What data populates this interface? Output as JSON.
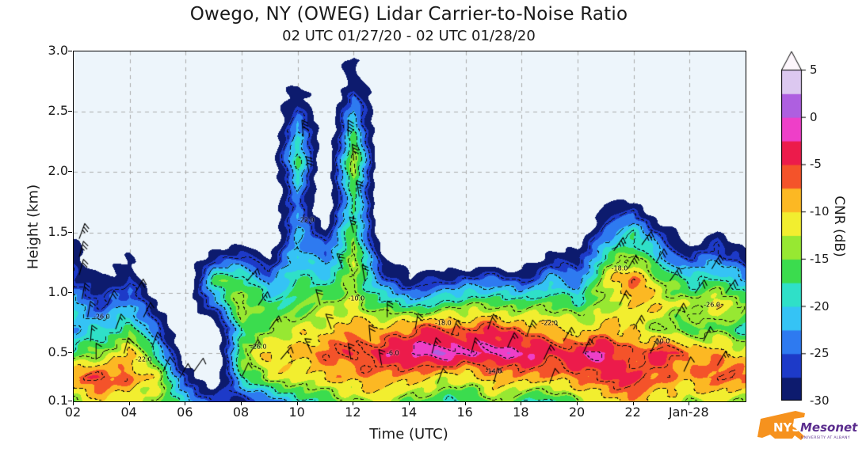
{
  "header": {
    "title": "Owego, NY (OWEG) Lidar Carrier-to-Noise Ratio",
    "subtitle": "02 UTC 01/27/20 - 02 UTC 01/28/20"
  },
  "axes": {
    "x": {
      "label": "Time (UTC)",
      "range_hours": [
        2,
        26
      ],
      "ticks": [
        {
          "hour": 2,
          "label": "02"
        },
        {
          "hour": 4,
          "label": "04"
        },
        {
          "hour": 6,
          "label": "06"
        },
        {
          "hour": 8,
          "label": "08"
        },
        {
          "hour": 10,
          "label": "10"
        },
        {
          "hour": 12,
          "label": "12"
        },
        {
          "hour": 14,
          "label": "14"
        },
        {
          "hour": 16,
          "label": "16"
        },
        {
          "hour": 18,
          "label": "18"
        },
        {
          "hour": 20,
          "label": "20"
        },
        {
          "hour": 22,
          "label": "22"
        },
        {
          "hour": 24,
          "label": "Jan-28"
        }
      ]
    },
    "y": {
      "label": "Height (km)",
      "range_km": [
        0.1,
        3.0
      ],
      "ticks": [
        {
          "km": 3.0,
          "label": "3.0"
        },
        {
          "km": 2.5,
          "label": "2.5"
        },
        {
          "km": 2.0,
          "label": "2.0"
        },
        {
          "km": 1.5,
          "label": "1.5"
        },
        {
          "km": 1.0,
          "label": "1.0"
        },
        {
          "km": 0.5,
          "label": "0.5"
        },
        {
          "km": 0.1,
          "label": "0.1"
        }
      ]
    }
  },
  "colorbar": {
    "label": "CNR (dB)",
    "range_db": [
      -30,
      5
    ],
    "band_step_db": 2.5,
    "ticks": [
      {
        "db": 5,
        "label": "5"
      },
      {
        "db": 0,
        "label": "0"
      },
      {
        "db": -5,
        "label": "-5"
      },
      {
        "db": -10,
        "label": "-10"
      },
      {
        "db": -15,
        "label": "-15"
      },
      {
        "db": -20,
        "label": "-20"
      },
      {
        "db": -25,
        "label": "-25"
      },
      {
        "db": -30,
        "label": "-30"
      }
    ],
    "colors_low_to_high": [
      "#0d1b6e",
      "#1d3ac8",
      "#2e7af0",
      "#35c3f5",
      "#2fe0c8",
      "#3bdc4e",
      "#97e832",
      "#f2ee2f",
      "#fcb823",
      "#f4532a",
      "#ec1b4b",
      "#ee3fc8",
      "#ae5fe0",
      "#dcc8f0"
    ],
    "over_color": "#fdf6fc",
    "plot_bg": "#edf5fb",
    "grid_color": "#aaaaaa"
  },
  "chart_data": {
    "type": "heatmap",
    "title": "Owego, NY (OWEG) Lidar Carrier-to-Noise Ratio",
    "subtitle": "02 UTC 01/27/20 - 02 UTC 01/28/20",
    "xlabel": "Time (UTC)",
    "ylabel": "Height (km)",
    "value_label": "CNR (dB)",
    "x_range_hours_from_02utc": [
      2,
      26
    ],
    "y_range_km": [
      0.1,
      3.0
    ],
    "value_range_db": [
      -30,
      5
    ],
    "contour_interval_db": 4,
    "x_hours": [
      2,
      3,
      4,
      5,
      6,
      7,
      8,
      9,
      10,
      11,
      12,
      13,
      14,
      15,
      16,
      17,
      18,
      19,
      20,
      21,
      22,
      23,
      24,
      25,
      26
    ],
    "heights_km": [
      0.1,
      0.3,
      0.5,
      0.7,
      0.9,
      1.1,
      1.3,
      1.5,
      1.7,
      1.9,
      2.1,
      2.3,
      2.5,
      2.7,
      2.9
    ],
    "cnr_db_columns": [
      [
        -14,
        -8,
        -16,
        -22,
        -20,
        -26,
        -29,
        -30,
        null,
        null,
        null,
        null,
        null,
        null,
        null
      ],
      [
        -10,
        -5,
        -14,
        -20,
        -26,
        -30,
        null,
        null,
        null,
        null,
        null,
        null,
        null,
        null,
        null
      ],
      [
        -12,
        -7,
        -10,
        -16,
        -22,
        -27,
        -30,
        null,
        null,
        null,
        null,
        null,
        null,
        null,
        null
      ],
      [
        -14,
        -12,
        -18,
        -26,
        -30,
        null,
        null,
        null,
        null,
        null,
        null,
        null,
        null,
        null,
        null
      ],
      [
        -20,
        -26,
        null,
        null,
        null,
        null,
        null,
        null,
        null,
        null,
        null,
        null,
        null,
        null,
        null
      ],
      [
        -26,
        null,
        null,
        null,
        -24,
        -16,
        -28,
        null,
        null,
        null,
        null,
        null,
        null,
        null,
        null
      ],
      [
        -28,
        -18,
        -14,
        -17,
        -12,
        -16,
        -27,
        null,
        null,
        null,
        null,
        null,
        null,
        null,
        null
      ],
      [
        -24,
        -12,
        -10,
        -15,
        -18,
        -23,
        -30,
        null,
        null,
        null,
        null,
        null,
        null,
        null,
        null
      ],
      [
        -20,
        -12,
        -9,
        -12,
        -15,
        -18,
        -20,
        -22,
        -24,
        -21,
        -16,
        -19,
        -26,
        -30,
        null
      ],
      [
        -17,
        -9,
        -7,
        -11,
        -14,
        -19,
        -24,
        -29,
        null,
        null,
        null,
        null,
        null,
        null,
        null
      ],
      [
        -14,
        -9,
        -5,
        -9,
        -12,
        -14,
        -12,
        -15,
        -17,
        -15,
        -12,
        -17,
        -22,
        -27,
        -30
      ],
      [
        -12,
        -7,
        -4,
        -9,
        -17,
        -24,
        -30,
        null,
        null,
        null,
        null,
        null,
        null,
        null,
        null
      ],
      [
        -15,
        -9,
        -2,
        -7,
        -19,
        -29,
        null,
        null,
        null,
        null,
        null,
        null,
        null,
        null,
        null
      ],
      [
        -17,
        -11,
        1,
        -5,
        -17,
        -27,
        null,
        null,
        null,
        null,
        null,
        null,
        null,
        null,
        null
      ],
      [
        -19,
        -11,
        -3,
        -7,
        -15,
        -25,
        null,
        null,
        null,
        null,
        null,
        null,
        null,
        null,
        null
      ],
      [
        -14,
        -9,
        -1,
        -5,
        -14,
        -24,
        null,
        null,
        null,
        null,
        null,
        null,
        null,
        null,
        null
      ],
      [
        -17,
        -7,
        -2,
        -7,
        -17,
        -27,
        null,
        null,
        null,
        null,
        null,
        null,
        null,
        null,
        null
      ],
      [
        -19,
        -9,
        -4,
        -9,
        -14,
        -21,
        -29,
        null,
        null,
        null,
        null,
        null,
        null,
        null,
        null
      ],
      [
        -14,
        -7,
        -3,
        -11,
        -17,
        -24,
        -30,
        null,
        null,
        null,
        null,
        null,
        null,
        null,
        null
      ],
      [
        -11,
        -5,
        -2,
        -9,
        -14,
        -11,
        -17,
        -24,
        -30,
        null,
        null,
        null,
        null,
        null,
        null
      ],
      [
        -9,
        -4,
        -7,
        -11,
        -9,
        -7,
        -14,
        -19,
        -28,
        null,
        null,
        null,
        null,
        null,
        null
      ],
      [
        -11,
        -7,
        -4,
        -14,
        -11,
        -14,
        -21,
        -27,
        null,
        null,
        null,
        null,
        null,
        null,
        null
      ],
      [
        -14,
        -9,
        -7,
        -17,
        -13,
        -19,
        -27,
        null,
        null,
        null,
        null,
        null,
        null,
        null,
        null
      ],
      [
        -11,
        -5,
        -9,
        -14,
        -11,
        -17,
        -24,
        -30,
        null,
        null,
        null,
        null,
        null,
        null,
        null
      ],
      [
        -14,
        -7,
        -11,
        -19,
        -14,
        -21,
        -29,
        null,
        null,
        null,
        null,
        null,
        null,
        null,
        null
      ]
    ],
    "wind_barbs_t_km_dir_speed": [
      [
        2.2,
        1.45,
        20,
        25
      ],
      [
        2.2,
        1.3,
        15,
        25
      ],
      [
        2.2,
        1.15,
        15,
        20
      ],
      [
        2.3,
        0.95,
        10,
        20
      ],
      [
        2.5,
        0.8,
        10,
        15
      ],
      [
        2.6,
        0.6,
        5,
        15
      ],
      [
        2.8,
        0.45,
        0,
        10
      ],
      [
        3.2,
        0.9,
        25,
        20
      ],
      [
        3.5,
        0.7,
        20,
        15
      ],
      [
        3.8,
        0.5,
        15,
        15
      ],
      [
        4.2,
        1.0,
        30,
        20
      ],
      [
        4.5,
        0.8,
        25,
        15
      ],
      [
        4.8,
        0.55,
        20,
        15
      ],
      [
        5.2,
        0.35,
        25,
        10
      ],
      [
        5.8,
        0.3,
        30,
        10
      ],
      [
        6.3,
        0.35,
        35,
        10
      ],
      [
        8.2,
        1.1,
        40,
        15
      ],
      [
        8.6,
        0.9,
        35,
        15
      ],
      [
        8.3,
        0.5,
        30,
        10
      ],
      [
        9.0,
        0.7,
        35,
        15
      ],
      [
        9.4,
        0.45,
        40,
        10
      ],
      [
        8.0,
        0.3,
        25,
        10
      ],
      [
        10.2,
        2.3,
        355,
        30
      ],
      [
        10.4,
        2.0,
        350,
        30
      ],
      [
        11.8,
        2.3,
        0,
        35
      ],
      [
        12.0,
        2.1,
        355,
        30
      ],
      [
        12.2,
        1.8,
        350,
        25
      ],
      [
        12.0,
        1.5,
        345,
        25
      ],
      [
        11.6,
        1.2,
        340,
        25
      ],
      [
        12.4,
        1.1,
        350,
        20
      ],
      [
        10.8,
        0.9,
        345,
        20
      ],
      [
        11.2,
        0.7,
        340,
        20
      ],
      [
        10.5,
        0.5,
        335,
        15
      ],
      [
        11.9,
        0.45,
        350,
        15
      ],
      [
        12.6,
        0.6,
        355,
        20
      ],
      [
        13.2,
        0.8,
        0,
        20
      ],
      [
        13.0,
        0.4,
        350,
        15
      ],
      [
        14.2,
        0.7,
        10,
        20
      ],
      [
        14.8,
        0.5,
        15,
        15
      ],
      [
        15.5,
        0.65,
        20,
        20
      ],
      [
        16.2,
        0.5,
        15,
        15
      ],
      [
        16.8,
        0.7,
        20,
        20
      ],
      [
        17.5,
        0.55,
        25,
        15
      ],
      [
        18.2,
        0.65,
        20,
        20
      ],
      [
        18.8,
        0.45,
        25,
        15
      ],
      [
        19.5,
        0.6,
        30,
        15
      ],
      [
        20.2,
        0.5,
        25,
        15
      ],
      [
        15.0,
        0.25,
        20,
        10
      ],
      [
        17.0,
        0.25,
        15,
        10
      ],
      [
        19.0,
        0.25,
        20,
        10
      ],
      [
        21.3,
        1.35,
        35,
        25
      ],
      [
        21.8,
        1.2,
        30,
        25
      ],
      [
        22.3,
        1.4,
        35,
        25
      ],
      [
        22.8,
        1.25,
        30,
        20
      ],
      [
        23.3,
        1.1,
        35,
        20
      ],
      [
        21.5,
        0.9,
        25,
        20
      ],
      [
        22.0,
        0.7,
        30,
        20
      ],
      [
        22.6,
        0.5,
        25,
        15
      ],
      [
        23.5,
        0.8,
        30,
        20
      ],
      [
        24.2,
        1.0,
        35,
        20
      ],
      [
        24.8,
        1.2,
        30,
        25
      ],
      [
        25.3,
        1.0,
        35,
        20
      ],
      [
        24.5,
        0.6,
        25,
        15
      ],
      [
        25.0,
        0.4,
        30,
        15
      ],
      [
        23.8,
        0.35,
        25,
        10
      ]
    ],
    "contour_labels_t_km_text": [
      [
        3.0,
        0.8,
        "-26.0"
      ],
      [
        4.5,
        0.45,
        "-22.0"
      ],
      [
        8.6,
        0.55,
        "-26.0"
      ],
      [
        10.3,
        1.6,
        "-22.0"
      ],
      [
        12.1,
        0.95,
        "-10.0"
      ],
      [
        13.4,
        0.5,
        "-6.0"
      ],
      [
        15.2,
        0.75,
        "-18.0"
      ],
      [
        17.0,
        0.35,
        "-14.0"
      ],
      [
        19.0,
        0.75,
        "-22.0"
      ],
      [
        21.5,
        1.2,
        "-18.0"
      ],
      [
        23.0,
        0.6,
        "-10.0"
      ],
      [
        24.8,
        0.9,
        "-26.0"
      ]
    ]
  },
  "logo": {
    "org": "NYS",
    "name": "Mesonet",
    "tagline": "UNIVERSITY AT ALBANY",
    "orange": "#f6921e",
    "purple": "#5b2d8e"
  }
}
